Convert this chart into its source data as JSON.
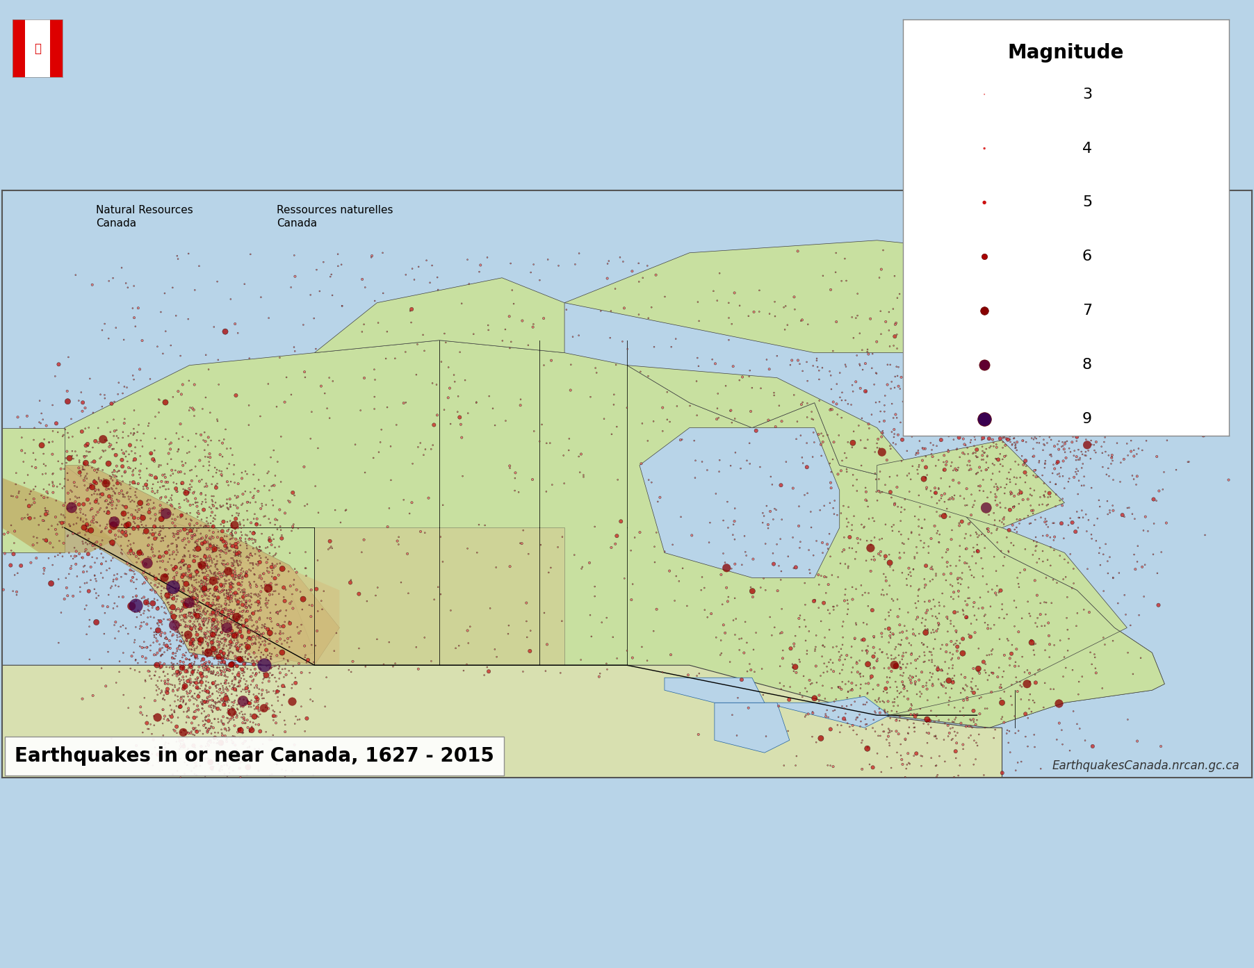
{
  "title": "Earthquakes in or near Canada, 1627 - 2015",
  "website": "EarthquakesCanada.nrcan.gc.ca",
  "header_text1": "Natural Resources\nCanada",
  "header_text2": "Ressources naturelles\nCanada",
  "legend_title": "Magnitude",
  "legend_magnitudes": [
    3,
    4,
    5,
    6,
    7,
    8,
    9
  ],
  "legend_sizes": [
    3,
    6,
    12,
    22,
    36,
    55,
    80
  ],
  "legend_colors": [
    "#e8636b",
    "#d43030",
    "#c01818",
    "#a00000",
    "#800000",
    "#500030",
    "#3a0050"
  ],
  "ocean_color": "#b8d4e8",
  "land_color": "#c8e0a0",
  "mountain_color": "#d4c090",
  "greenland_color": "#c8c8c8",
  "border_color": "#000000",
  "eq_color_small": "#e8636b",
  "eq_color_medium": "#cc2020",
  "eq_color_large": "#880000",
  "eq_color_xlarge": "#440022",
  "background_color": "#b8d4e8",
  "fig_width": 18.04,
  "fig_height": 13.93
}
